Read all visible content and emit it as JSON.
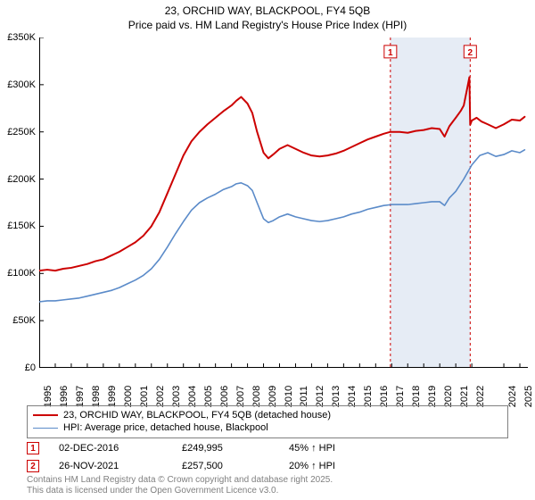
{
  "title": {
    "line1": "23, ORCHID WAY, BLACKPOOL, FY4 5QB",
    "line2": "Price paid vs. HM Land Registry's House Price Index (HPI)",
    "fontsize": 12,
    "color": "#000000"
  },
  "chart": {
    "type": "line",
    "background_color": "#ffffff",
    "plot_border_color": "#000000",
    "xlim": [
      1995,
      2025.5
    ],
    "ylim": [
      0,
      350000
    ],
    "y_ticks": [
      0,
      50000,
      100000,
      150000,
      200000,
      250000,
      300000,
      350000
    ],
    "y_tick_labels": [
      "£0",
      "£50K",
      "£100K",
      "£150K",
      "£200K",
      "£250K",
      "£300K",
      "£350K"
    ],
    "y_tick_fontsize": 11,
    "x_ticks": [
      1995,
      1996,
      1997,
      1998,
      1999,
      2000,
      2001,
      2002,
      2003,
      2004,
      2005,
      2006,
      2007,
      2008,
      2009,
      2010,
      2011,
      2012,
      2013,
      2014,
      2015,
      2016,
      2017,
      2018,
      2019,
      2020,
      2021,
      2022,
      2024,
      2025
    ],
    "x_tick_fontsize": 11,
    "x_tick_rotation": -90,
    "shaded_region": {
      "x_start": 2016.92,
      "x_end": 2021.9,
      "fill": "#e6ecf5",
      "opacity": 1.0
    },
    "markers": [
      {
        "id": "1",
        "x": 2016.92,
        "line_color": "#cc0000",
        "line_dash": "3,3",
        "line_width": 1,
        "box_border": "#cc0000",
        "box_text_color": "#cc0000",
        "box_bg": "#ffffff",
        "y_box": 335000
      },
      {
        "id": "2",
        "x": 2021.9,
        "line_color": "#cc0000",
        "line_dash": "3,3",
        "line_width": 1,
        "box_border": "#cc0000",
        "box_text_color": "#cc0000",
        "box_bg": "#ffffff",
        "y_box": 335000
      }
    ],
    "series": [
      {
        "name": "price_paid",
        "label": "23, ORCHID WAY, BLACKPOOL, FY4 5QB (detached house)",
        "color": "#cc0000",
        "line_width": 2.0,
        "data": [
          [
            1995.0,
            103000
          ],
          [
            1995.5,
            104000
          ],
          [
            1996.0,
            103000
          ],
          [
            1996.5,
            105000
          ],
          [
            1997.0,
            106000
          ],
          [
            1997.5,
            108000
          ],
          [
            1998.0,
            110000
          ],
          [
            1998.5,
            113000
          ],
          [
            1999.0,
            115000
          ],
          [
            1999.5,
            119000
          ],
          [
            2000.0,
            123000
          ],
          [
            2000.5,
            128000
          ],
          [
            2001.0,
            133000
          ],
          [
            2001.5,
            140000
          ],
          [
            2002.0,
            150000
          ],
          [
            2002.5,
            165000
          ],
          [
            2003.0,
            185000
          ],
          [
            2003.5,
            205000
          ],
          [
            2004.0,
            225000
          ],
          [
            2004.5,
            240000
          ],
          [
            2005.0,
            250000
          ],
          [
            2005.5,
            258000
          ],
          [
            2006.0,
            265000
          ],
          [
            2006.5,
            272000
          ],
          [
            2007.0,
            278000
          ],
          [
            2007.3,
            283000
          ],
          [
            2007.6,
            287000
          ],
          [
            2008.0,
            280000
          ],
          [
            2008.3,
            270000
          ],
          [
            2008.6,
            250000
          ],
          [
            2009.0,
            228000
          ],
          [
            2009.3,
            222000
          ],
          [
            2009.6,
            226000
          ],
          [
            2010.0,
            232000
          ],
          [
            2010.5,
            236000
          ],
          [
            2011.0,
            232000
          ],
          [
            2011.5,
            228000
          ],
          [
            2012.0,
            225000
          ],
          [
            2012.5,
            224000
          ],
          [
            2013.0,
            225000
          ],
          [
            2013.5,
            227000
          ],
          [
            2014.0,
            230000
          ],
          [
            2014.5,
            234000
          ],
          [
            2015.0,
            238000
          ],
          [
            2015.5,
            242000
          ],
          [
            2016.0,
            245000
          ],
          [
            2016.5,
            248000
          ],
          [
            2016.92,
            249995
          ],
          [
            2017.5,
            250000
          ],
          [
            2018.0,
            249000
          ],
          [
            2018.5,
            251000
          ],
          [
            2019.0,
            252000
          ],
          [
            2019.5,
            254000
          ],
          [
            2020.0,
            253000
          ],
          [
            2020.3,
            245000
          ],
          [
            2020.6,
            256000
          ],
          [
            2021.0,
            265000
          ],
          [
            2021.3,
            272000
          ],
          [
            2021.5,
            278000
          ],
          [
            2021.7,
            295000
          ],
          [
            2021.85,
            308000
          ],
          [
            2021.9,
            257500
          ],
          [
            2022.0,
            262000
          ],
          [
            2022.3,
            265000
          ],
          [
            2022.6,
            261000
          ],
          [
            2023.0,
            258000
          ],
          [
            2023.5,
            254000
          ],
          [
            2024.0,
            258000
          ],
          [
            2024.5,
            263000
          ],
          [
            2025.0,
            262000
          ],
          [
            2025.3,
            266000
          ]
        ]
      },
      {
        "name": "hpi",
        "label": "HPI: Average price, detached house, Blackpool",
        "color": "#5b8bc9",
        "line_width": 1.6,
        "data": [
          [
            1995.0,
            70000
          ],
          [
            1995.5,
            71000
          ],
          [
            1996.0,
            71000
          ],
          [
            1996.5,
            72000
          ],
          [
            1997.0,
            73000
          ],
          [
            1997.5,
            74000
          ],
          [
            1998.0,
            76000
          ],
          [
            1998.5,
            78000
          ],
          [
            1999.0,
            80000
          ],
          [
            1999.5,
            82000
          ],
          [
            2000.0,
            85000
          ],
          [
            2000.5,
            89000
          ],
          [
            2001.0,
            93000
          ],
          [
            2001.5,
            98000
          ],
          [
            2002.0,
            105000
          ],
          [
            2002.5,
            115000
          ],
          [
            2003.0,
            128000
          ],
          [
            2003.5,
            142000
          ],
          [
            2004.0,
            155000
          ],
          [
            2004.5,
            167000
          ],
          [
            2005.0,
            175000
          ],
          [
            2005.5,
            180000
          ],
          [
            2006.0,
            184000
          ],
          [
            2006.5,
            189000
          ],
          [
            2007.0,
            192000
          ],
          [
            2007.3,
            195000
          ],
          [
            2007.6,
            196000
          ],
          [
            2008.0,
            193000
          ],
          [
            2008.3,
            188000
          ],
          [
            2008.6,
            175000
          ],
          [
            2009.0,
            158000
          ],
          [
            2009.3,
            154000
          ],
          [
            2009.6,
            156000
          ],
          [
            2010.0,
            160000
          ],
          [
            2010.5,
            163000
          ],
          [
            2011.0,
            160000
          ],
          [
            2011.5,
            158000
          ],
          [
            2012.0,
            156000
          ],
          [
            2012.5,
            155000
          ],
          [
            2013.0,
            156000
          ],
          [
            2013.5,
            158000
          ],
          [
            2014.0,
            160000
          ],
          [
            2014.5,
            163000
          ],
          [
            2015.0,
            165000
          ],
          [
            2015.5,
            168000
          ],
          [
            2016.0,
            170000
          ],
          [
            2016.5,
            172000
          ],
          [
            2017.0,
            173000
          ],
          [
            2017.5,
            173000
          ],
          [
            2018.0,
            173000
          ],
          [
            2018.5,
            174000
          ],
          [
            2019.0,
            175000
          ],
          [
            2019.5,
            176000
          ],
          [
            2020.0,
            176000
          ],
          [
            2020.3,
            172000
          ],
          [
            2020.6,
            180000
          ],
          [
            2021.0,
            187000
          ],
          [
            2021.5,
            200000
          ],
          [
            2022.0,
            215000
          ],
          [
            2022.5,
            225000
          ],
          [
            2023.0,
            228000
          ],
          [
            2023.5,
            224000
          ],
          [
            2024.0,
            226000
          ],
          [
            2024.5,
            230000
          ],
          [
            2025.0,
            228000
          ],
          [
            2025.3,
            231000
          ]
        ]
      }
    ]
  },
  "legend": {
    "border_color": "#808080",
    "fontsize": 11
  },
  "sales": [
    {
      "marker_id": "1",
      "marker_border": "#cc0000",
      "marker_text_color": "#cc0000",
      "date": "02-DEC-2016",
      "price": "£249,995",
      "hpi_delta": "45% ↑ HPI"
    },
    {
      "marker_id": "2",
      "marker_border": "#cc0000",
      "marker_text_color": "#cc0000",
      "date": "26-NOV-2021",
      "price": "£257,500",
      "hpi_delta": "20% ↑ HPI"
    }
  ],
  "attribution": {
    "line1": "Contains HM Land Registry data © Crown copyright and database right 2025.",
    "line2": "This data is licensed under the Open Government Licence v3.0.",
    "color": "#808080",
    "fontsize": 10
  }
}
